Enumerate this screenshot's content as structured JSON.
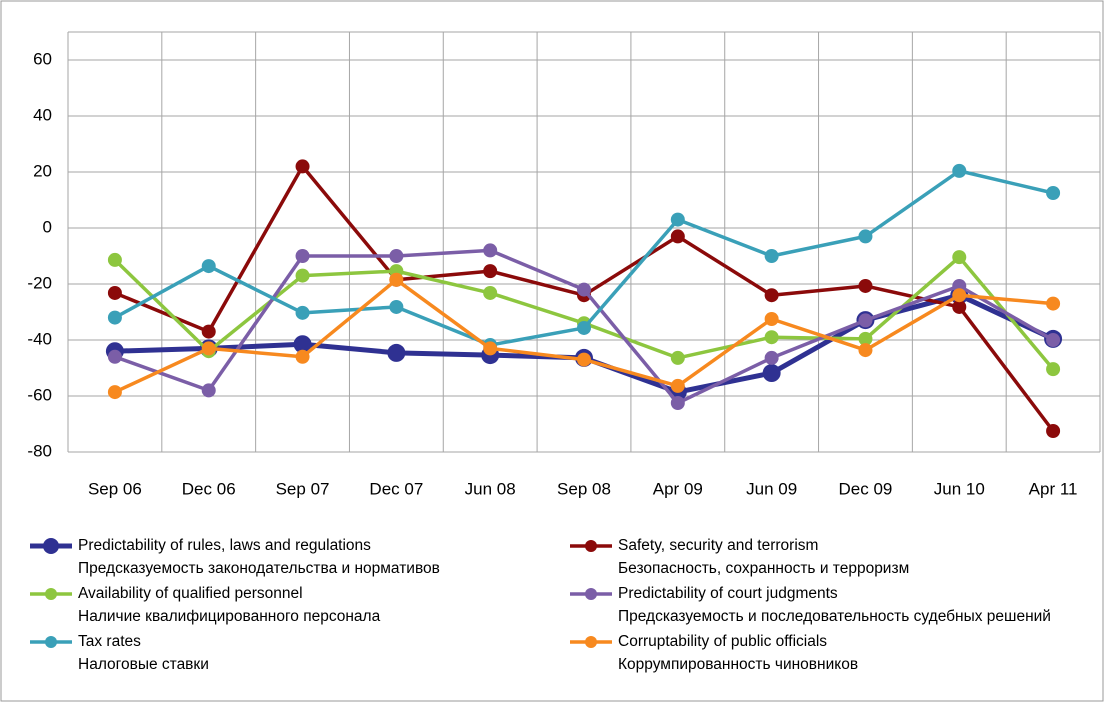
{
  "chart_data": {
    "type": "line",
    "categories": [
      "Sep 06",
      "Dec 06",
      "Sep 07",
      "Dec 07",
      "Jun 08",
      "Sep 08",
      "Apr 09",
      "Jun 09",
      "Dec 09",
      "Jun 10",
      "Apr 11"
    ],
    "ylim": [
      -80,
      70
    ],
    "yticks": [
      -80,
      -60,
      -40,
      -20,
      0,
      20,
      40,
      60
    ],
    "grid": true,
    "series": [
      {
        "name": "Predictability of rules, laws and regulations",
        "name_ru": "Предсказуемость законодательства  и нормативов",
        "color": "#2f3192",
        "values": [
          -44,
          -43,
          -41.5,
          -44.6,
          -45.4,
          -46.4,
          -58.6,
          -51.8,
          -32.9,
          -24,
          -39.6
        ]
      },
      {
        "name": "Safety, security and terrorism",
        "name_ru": "Безопасность, сохранность и терроризм",
        "color": "#8b0a0a",
        "values": [
          -23.2,
          -37,
          22,
          -18.5,
          -15.4,
          -24,
          -3,
          -24,
          -20.7,
          -28.2,
          -72.5
        ]
      },
      {
        "name": "Availability of qualified personnel",
        "name_ru": "Наличие квалифицированного  персонала",
        "color": "#8dc63f",
        "values": [
          -11.4,
          -44,
          -17,
          -15.4,
          -23.2,
          -34,
          -46.4,
          -39,
          -39.6,
          -10.4,
          -50.4
        ]
      },
      {
        "name": "Predictability of court judgments",
        "name_ru": "Предсказуемость и последовательность судебных решений",
        "color": "#7b5ea7",
        "values": [
          -46,
          -58,
          -10,
          -10,
          -8,
          -22,
          -62.5,
          -46.4,
          -33,
          -20.7,
          -40
        ]
      },
      {
        "name": "Tax rates",
        "name_ru": "Налоговые ставки",
        "color": "#3aa0b8",
        "values": [
          -32,
          -13.6,
          -30.3,
          -28.2,
          -41.8,
          -35.7,
          3,
          -10,
          -3,
          20.4,
          12.5
        ]
      },
      {
        "name": "Corruptability of public officials",
        "name_ru": "Коррумпированность чиновников",
        "color": "#f7891f",
        "values": [
          -58.6,
          -43,
          -46,
          -18.5,
          -43,
          -47,
          -56.4,
          -32.5,
          -43.6,
          -24,
          -27
        ]
      }
    ]
  }
}
